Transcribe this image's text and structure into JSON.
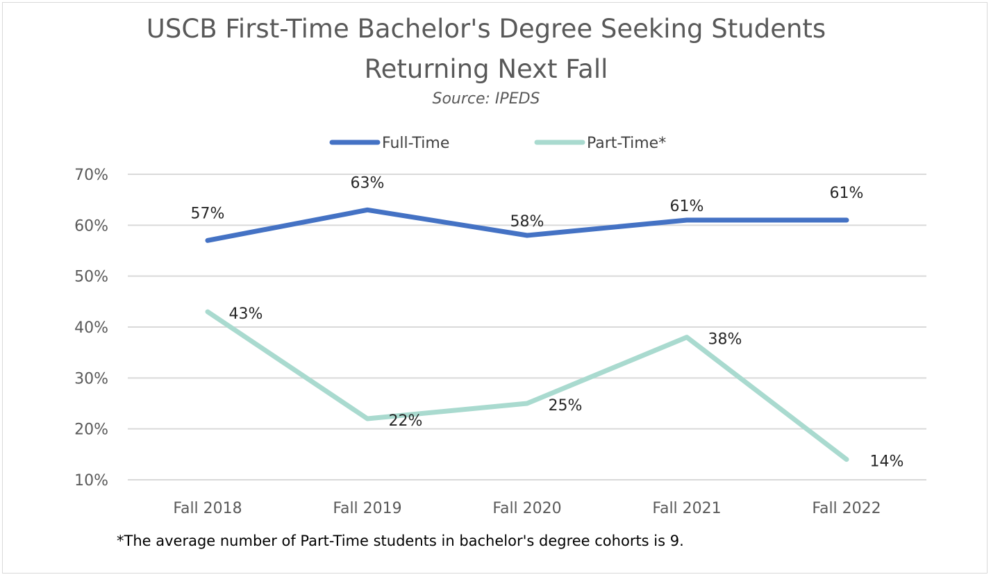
{
  "chart_data": {
    "type": "line",
    "title_line1": "USCB First-Time Bachelor's Degree Seeking Students",
    "title_line2": "Returning Next Fall",
    "subtitle": "Source: IPEDS",
    "categories": [
      "Fall 2018",
      "Fall 2019",
      "Fall 2020",
      "Fall 2021",
      "Fall 2022"
    ],
    "y_ticks": [
      "10%",
      "20%",
      "30%",
      "40%",
      "50%",
      "60%",
      "70%"
    ],
    "ylim": [
      10,
      70
    ],
    "grid": true,
    "legend_position": "top",
    "series": [
      {
        "name": "Full-Time",
        "color": "#4472c4",
        "values": [
          57,
          63,
          58,
          61,
          61
        ],
        "labels": [
          "57%",
          "63%",
          "58%",
          "61%",
          "61%"
        ]
      },
      {
        "name": "Part-Time*",
        "color": "#a9dacf",
        "values": [
          43,
          22,
          25,
          38,
          14
        ],
        "labels": [
          "43%",
          "22%",
          "25%",
          "38%",
          "14%"
        ]
      }
    ],
    "footnote": "*The average number of Part-Time students in bachelor's degree cohorts is 9."
  }
}
